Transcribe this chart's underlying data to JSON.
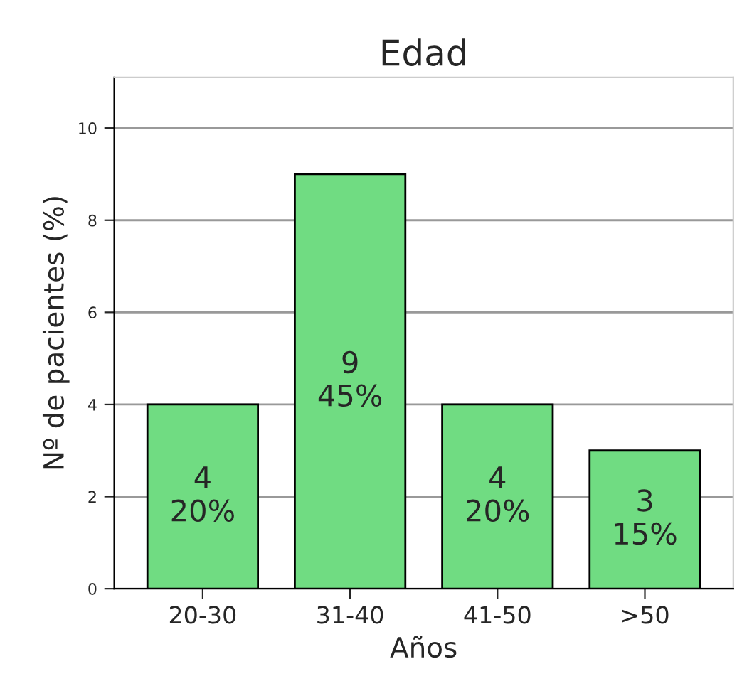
{
  "chart_data": {
    "type": "bar",
    "title": "Edad",
    "xlabel": "Años",
    "ylabel": "Nº de pacientes (%)",
    "categories": [
      "20-30",
      "31-40",
      "41-50",
      ">50"
    ],
    "values": [
      4,
      9,
      4,
      3
    ],
    "value_labels": [
      "4\n20%",
      "9\n45%",
      "4\n20%",
      "3\n15%"
    ],
    "color": "#70dc82",
    "ylim": [
      0,
      11.1
    ],
    "yticks": [
      0,
      2,
      4,
      6,
      8,
      10
    ],
    "grid": "y"
  }
}
